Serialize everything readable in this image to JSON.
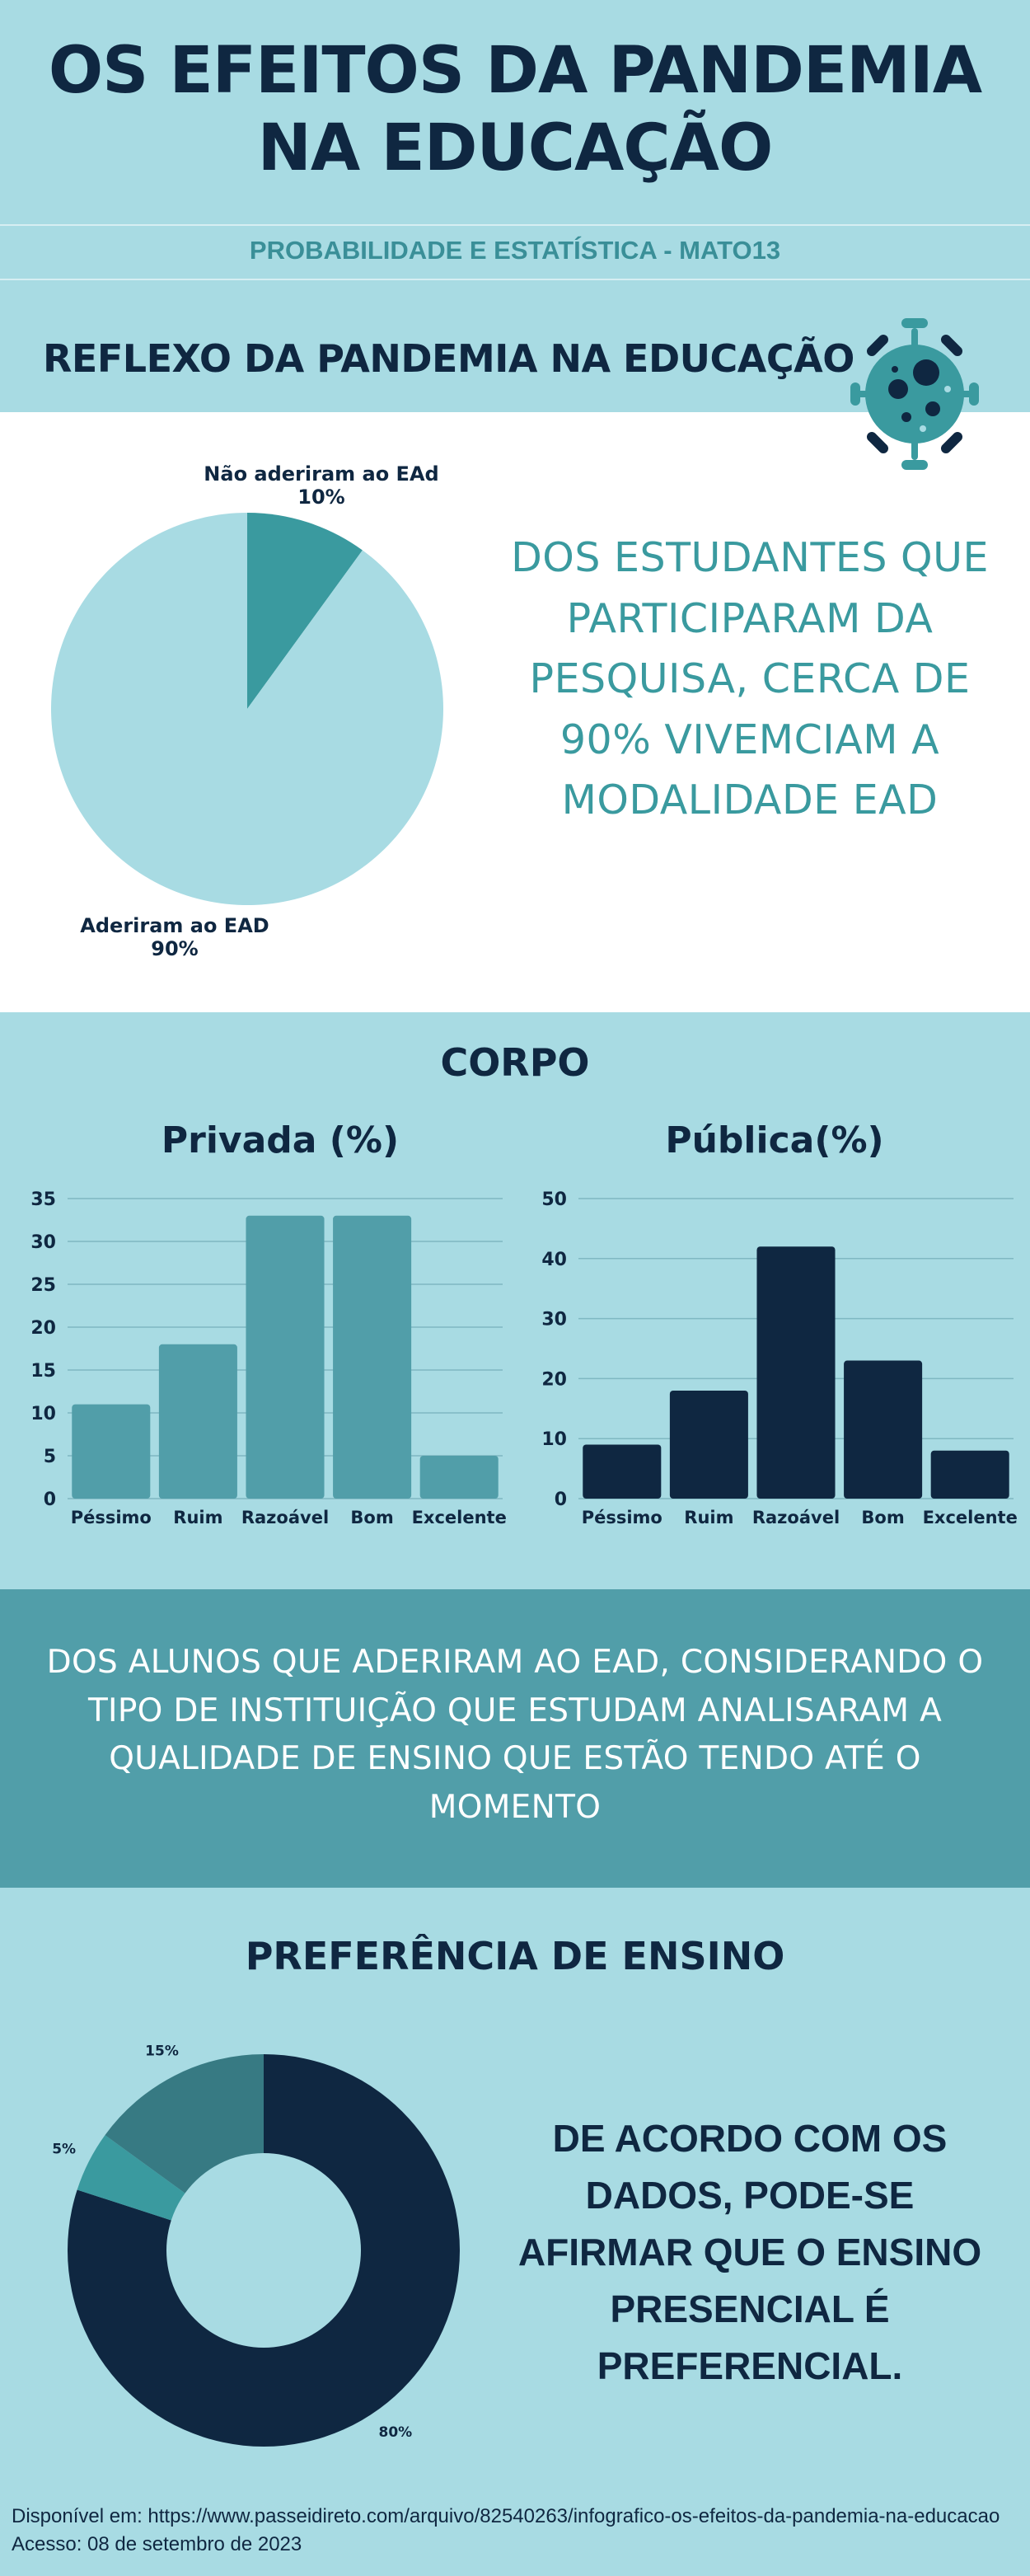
{
  "header": {
    "title_line1": "OS EFEITOS DA PANDEMIA",
    "title_line2": "NA EDUCAÇÃO",
    "subtitle": "PROBABILIDADE E ESTATÍSTICA - MATO13"
  },
  "section1": {
    "title": "REFLEXO DA PANDEMIA NA EDUCAÇÃO",
    "icon": "virus-icon",
    "statement": "DOS ESTUDANTES QUE PARTICIPARAM DA PESQUISA, CERCA DE 90% VIVEMCIAM A MODALIDADE EAD"
  },
  "section2": {
    "title": "CORPO",
    "statement": "DOS ALUNOS QUE ADERIRAM AO EAD, CONSIDERANDO O TIPO DE INSTITUIÇÃO QUE ESTUDAM ANALISARAM A QUALIDADE DE ENSINO QUE ESTÃO TENDO ATÉ O MOMENTO"
  },
  "section3": {
    "title": "PREFERÊNCIA DE ENSINO",
    "statement": "DE ACORDO COM OS DADOS, PODE-SE AFIRMAR QUE O ENSINO PRESENCIAL É PREFERENCIAL."
  },
  "footer": {
    "line1": "Disponível em: https://www.passeidireto.com/arquivo/82540263/infografico-os-efeitos-da-pandemia-na-educacao",
    "line2": "Acesso: 08 de setembro de 2023"
  },
  "colors": {
    "background": "#a8dbe3",
    "navy": "#0f2741",
    "teal": "#3a9a9f",
    "bar_private": "#519ea9",
    "pie_light": "#a8dbe3",
    "donut_mid": "#377a83"
  },
  "chart_data": [
    {
      "type": "pie",
      "labels": [
        "Não aderiram ao EAd",
        "Aderiram ao EAD"
      ],
      "values": [
        10,
        90
      ],
      "value_labels": [
        "10%",
        "90%"
      ],
      "colors": [
        "#3a9a9f",
        "#a8dbe3"
      ]
    },
    {
      "type": "bar",
      "title": "Privada (%)",
      "categories": [
        "Péssimo",
        "Ruim",
        "Razoável",
        "Bom",
        "Excelente"
      ],
      "values": [
        11,
        18,
        33,
        33,
        5
      ],
      "ylim": [
        0,
        35
      ],
      "yticks": [
        0,
        5,
        10,
        15,
        20,
        25,
        30,
        35
      ],
      "grid": true,
      "color": "#519ea9"
    },
    {
      "type": "bar",
      "title": "Pública(%)",
      "categories": [
        "Péssimo",
        "Ruim",
        "Razoável",
        "Bom",
        "Excelente"
      ],
      "values": [
        9,
        18,
        42,
        23,
        8
      ],
      "ylim": [
        0,
        50
      ],
      "yticks": [
        0,
        10,
        20,
        30,
        40,
        50
      ],
      "grid": true,
      "color": "#0f2741"
    },
    {
      "type": "pie",
      "subtype": "donut",
      "values": [
        80,
        5,
        15
      ],
      "value_labels": [
        "80%",
        "5%",
        "15%"
      ],
      "colors": [
        "#0f2741",
        "#3a9a9f",
        "#377a83"
      ]
    }
  ]
}
